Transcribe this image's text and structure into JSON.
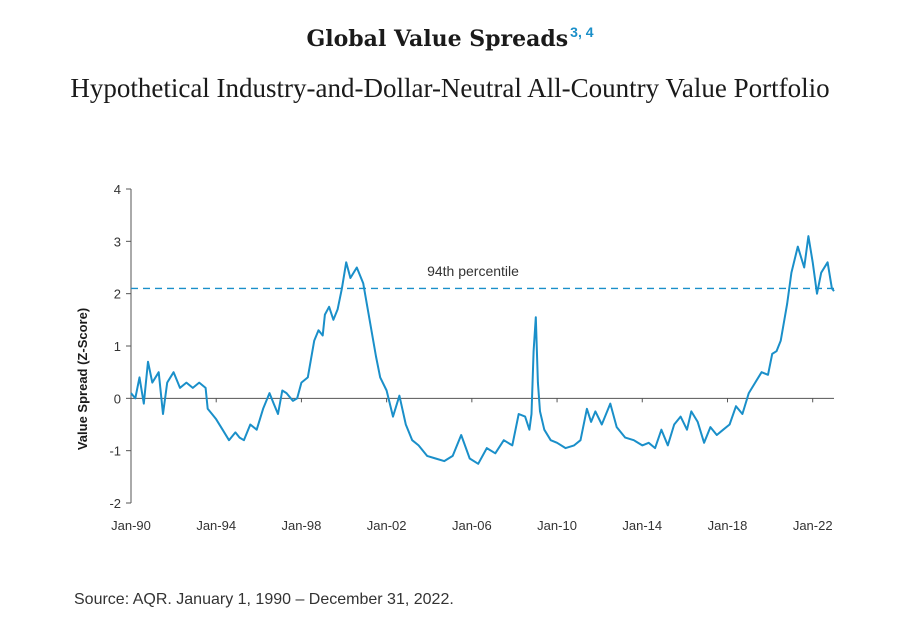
{
  "title": "Global Value Spreads",
  "title_superscript": "3, 4",
  "subtitle": "Hypothetical Industry-and-Dollar-Neutral All-Country Value Portfolio",
  "source": "Source: AQR. January 1, 1990 – December 31, 2022.",
  "colors": {
    "series": "#1a8fc9",
    "axis": "#555555",
    "text": "#1a1a1a"
  },
  "chart_data": {
    "type": "line",
    "title": "Global Value Spreads",
    "subtitle": "Hypothetical Industry-and-Dollar-Neutral All-Country Value Portfolio",
    "xlabel": "",
    "ylabel": "Value Spread (Z-Score)",
    "ylim": [
      -2,
      4
    ],
    "yticks": [
      -2,
      -1,
      0,
      1,
      2,
      3,
      4
    ],
    "xlim": [
      1990.0,
      2023.0
    ],
    "xticks": [
      {
        "x": 1990,
        "label": "Jan-90"
      },
      {
        "x": 1994,
        "label": "Jan-94"
      },
      {
        "x": 1998,
        "label": "Jan-98"
      },
      {
        "x": 2002,
        "label": "Jan-02"
      },
      {
        "x": 2006,
        "label": "Jan-06"
      },
      {
        "x": 2010,
        "label": "Jan-10"
      },
      {
        "x": 2014,
        "label": "Jan-14"
      },
      {
        "x": 2018,
        "label": "Jan-18"
      },
      {
        "x": 2022,
        "label": "Jan-22"
      }
    ],
    "grid": false,
    "reference_line": {
      "y": 2.1,
      "label": "94th percentile",
      "style": "dashed"
    },
    "series": [
      {
        "x": [
          1990.0,
          1990.2,
          1990.4,
          1990.6,
          1990.8,
          1991.0,
          1991.3,
          1991.5,
          1991.7,
          1992.0,
          1992.3,
          1992.6,
          1992.9,
          1993.2,
          1993.5,
          1993.6,
          1993.8,
          1994.0,
          1994.3,
          1994.6,
          1994.9,
          1995.1,
          1995.3,
          1995.6,
          1995.9,
          1996.2,
          1996.5,
          1996.7,
          1996.9,
          1997.1,
          1997.3,
          1997.6,
          1997.8,
          1998.0,
          1998.3,
          1998.6,
          1998.8,
          1999.0,
          1999.1,
          1999.3,
          1999.5,
          1999.7,
          1999.9,
          2000.1,
          2000.3,
          2000.6,
          2000.9,
          2001.2,
          2001.5,
          2001.7,
          2002.0,
          2002.3,
          2002.6,
          2002.9,
          2003.2,
          2003.5,
          2003.9,
          2004.3,
          2004.7,
          2005.1,
          2005.5,
          2005.9,
          2006.3,
          2006.7,
          2007.1,
          2007.5,
          2007.9,
          2008.2,
          2008.5,
          2008.7,
          2008.8,
          2008.9,
          2009.0,
          2009.1,
          2009.2,
          2009.4,
          2009.7,
          2010.0,
          2010.4,
          2010.8,
          2011.1,
          2011.4,
          2011.6,
          2011.8,
          2012.1,
          2012.5,
          2012.8,
          2013.2,
          2013.6,
          2014.0,
          2014.3,
          2014.6,
          2014.9,
          2015.2,
          2015.5,
          2015.8,
          2016.1,
          2016.3,
          2016.6,
          2016.9,
          2017.2,
          2017.5,
          2017.8,
          2018.1,
          2018.4,
          2018.7,
          2019.0,
          2019.3,
          2019.6,
          2019.9,
          2020.1,
          2020.3,
          2020.5,
          2020.8,
          2021.0,
          2021.3,
          2021.6,
          2021.8,
          2022.0,
          2022.2,
          2022.4,
          2022.7,
          2022.9,
          2023.0
        ],
        "y": [
          0.1,
          0.0,
          0.4,
          -0.1,
          0.7,
          0.3,
          0.5,
          -0.3,
          0.3,
          0.5,
          0.2,
          0.3,
          0.2,
          0.3,
          0.2,
          -0.2,
          -0.3,
          -0.4,
          -0.6,
          -0.8,
          -0.65,
          -0.75,
          -0.8,
          -0.5,
          -0.6,
          -0.2,
          0.1,
          -0.1,
          -0.3,
          0.15,
          0.1,
          -0.05,
          0.0,
          0.3,
          0.4,
          1.1,
          1.3,
          1.2,
          1.6,
          1.75,
          1.5,
          1.7,
          2.1,
          2.6,
          2.3,
          2.5,
          2.2,
          1.5,
          0.8,
          0.4,
          0.15,
          -0.35,
          0.05,
          -0.5,
          -0.8,
          -0.9,
          -1.1,
          -1.15,
          -1.2,
          -1.1,
          -0.7,
          -1.15,
          -1.25,
          -0.95,
          -1.05,
          -0.8,
          -0.9,
          -0.3,
          -0.35,
          -0.6,
          -0.3,
          0.9,
          1.55,
          0.3,
          -0.25,
          -0.6,
          -0.8,
          -0.85,
          -0.95,
          -0.9,
          -0.8,
          -0.2,
          -0.45,
          -0.25,
          -0.5,
          -0.1,
          -0.55,
          -0.75,
          -0.8,
          -0.9,
          -0.85,
          -0.95,
          -0.6,
          -0.9,
          -0.5,
          -0.35,
          -0.6,
          -0.25,
          -0.45,
          -0.85,
          -0.55,
          -0.7,
          -0.6,
          -0.5,
          -0.15,
          -0.3,
          0.1,
          0.3,
          0.5,
          0.45,
          0.85,
          0.9,
          1.1,
          1.8,
          2.4,
          2.9,
          2.5,
          3.1,
          2.6,
          2.0,
          2.4,
          2.6,
          2.1,
          2.05
        ]
      }
    ]
  }
}
